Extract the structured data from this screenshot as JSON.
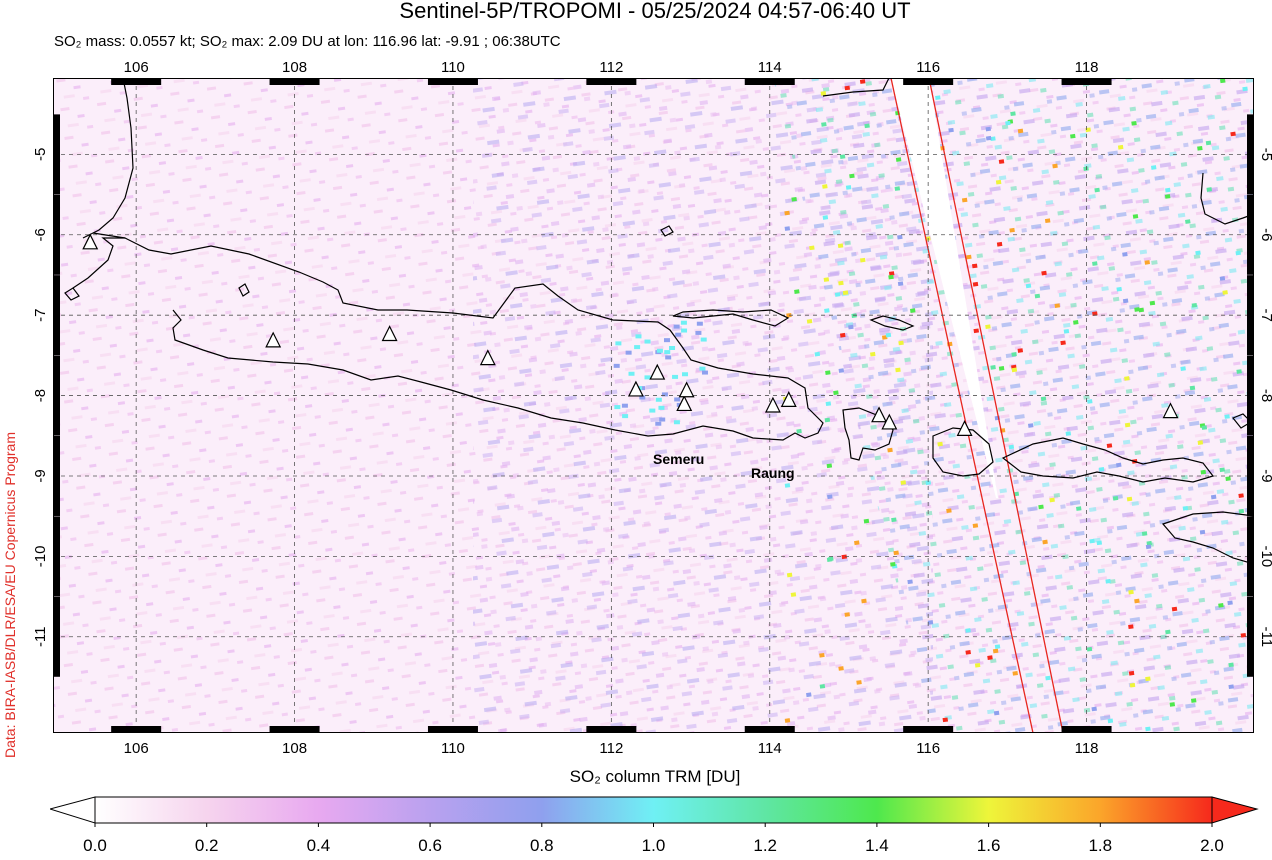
{
  "header": {
    "title": "Sentinel-5P/TROPOMI - 05/25/2024 04:57-06:40 UT",
    "subtitle": "SO₂ mass: 0.0557 kt; SO₂ max: 2.09 DU at lon: 116.96 lat: -9.91 ; 06:38UTC"
  },
  "credit": "Data: BIRA-IASB/DLR/ESA/EU Copernicus Program",
  "map": {
    "lon_range": [
      105,
      120
    ],
    "lat_range": [
      -12,
      -4
    ],
    "lon_ticks": [
      "106",
      "108",
      "110",
      "112",
      "114",
      "116",
      "118"
    ],
    "lat_ticks": [
      "-5",
      "-6",
      "-7",
      "-8",
      "-9",
      "-10",
      "-11"
    ],
    "gridlines": "dashed",
    "volcanoes": [
      {
        "name": "",
        "lon": 105.42,
        "lat": -6.1
      },
      {
        "name": "",
        "lon": 107.73,
        "lat": -7.32
      },
      {
        "name": "",
        "lon": 109.2,
        "lat": -7.24
      },
      {
        "name": "",
        "lon": 110.44,
        "lat": -7.54
      },
      {
        "name": "",
        "lon": 112.31,
        "lat": -7.93
      },
      {
        "name": "",
        "lon": 112.58,
        "lat": -7.72
      },
      {
        "name": "Semeru",
        "lon": 112.92,
        "lat": -8.11
      },
      {
        "name": "",
        "lon": 112.95,
        "lat": -7.94
      },
      {
        "name": "",
        "lon": 114.04,
        "lat": -8.13
      },
      {
        "name": "Raung",
        "lon": 114.24,
        "lat": -8.06
      },
      {
        "name": "",
        "lon": 115.38,
        "lat": -8.25
      },
      {
        "name": "",
        "lon": 115.51,
        "lat": -8.34
      },
      {
        "name": "",
        "lon": 116.46,
        "lat": -8.42
      },
      {
        "name": "",
        "lon": 119.06,
        "lat": -8.2
      }
    ],
    "labels": [
      "Semeru",
      "Raung"
    ],
    "swath_gap": "white data gap between two red swath-edge lines",
    "colors": {
      "coast": "#000000",
      "swath_edge": "#e8261f",
      "grid": "#555555"
    }
  },
  "colorbar": {
    "label": "SO₂ column TRM [DU]",
    "ticks": [
      "0.0",
      "0.2",
      "0.4",
      "0.6",
      "0.8",
      "1.0",
      "1.2",
      "1.4",
      "1.6",
      "1.8",
      "2.0"
    ],
    "range": [
      0.0,
      2.0
    ],
    "colors": [
      "#ffffff",
      "#f6d4ee",
      "#e8a9f0",
      "#b9a1ef",
      "#8fa0ee",
      "#6ff0f4",
      "#5fe6a4",
      "#4ee84d",
      "#eef53a",
      "#fba52a",
      "#f6291c"
    ]
  }
}
